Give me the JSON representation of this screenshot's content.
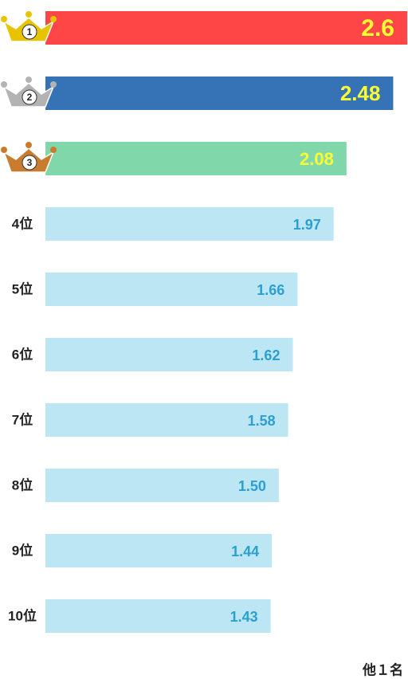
{
  "chart_data": {
    "type": "bar",
    "orientation": "horizontal",
    "categories": [
      "1",
      "2",
      "3",
      "4位",
      "5位",
      "6位",
      "7位",
      "8位",
      "9位",
      "10位"
    ],
    "values": [
      2.6,
      2.48,
      2.08,
      1.97,
      1.66,
      1.62,
      1.58,
      1.5,
      1.44,
      1.43
    ],
    "value_labels": [
      "2.6",
      "2.48",
      "2.08",
      "1.97",
      "1.66",
      "1.62",
      "1.58",
      "1.50",
      "1.44",
      "1.43"
    ],
    "colors": [
      "#ff4646",
      "#3572b6",
      "#80d8aa",
      "#bde6f5",
      "#bde6f5",
      "#bde6f5",
      "#bde6f5",
      "#bde6f5",
      "#bde6f5",
      "#bde6f5"
    ],
    "label_colors": [
      "#ffff33",
      "#ffff33",
      "#ffff33",
      "#2a9fd0",
      "#2a9fd0",
      "#2a9fd0",
      "#2a9fd0",
      "#2a9fd0",
      "#2a9fd0",
      "#2a9fd0"
    ],
    "xlim": [
      -0.5,
      2.6
    ],
    "footnote": "他１名"
  }
}
